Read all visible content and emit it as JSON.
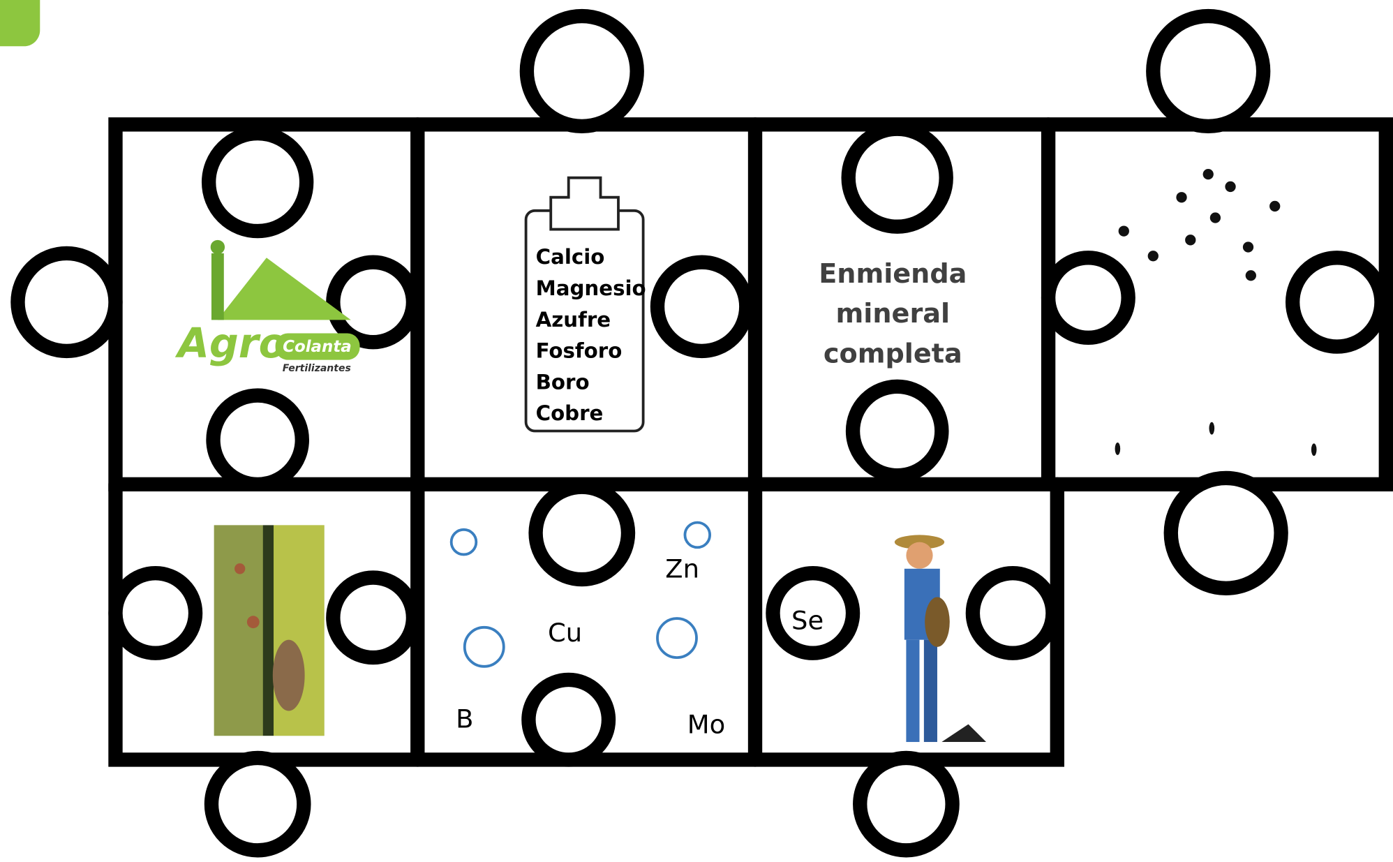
{
  "logo": {
    "name": "Agro",
    "brand": "Colanta",
    "subtitle": "Fertilizantes"
  },
  "clipboard": {
    "items": [
      "Calcio",
      "Magnesio",
      "Azufre",
      "Fosforo",
      "Boro",
      "Cobre"
    ]
  },
  "center_title": {
    "lines": [
      "Enmienda",
      "mineral",
      "completa"
    ]
  },
  "elements": [
    "Zn",
    "Cu",
    "Se",
    "B",
    "Mo"
  ]
}
